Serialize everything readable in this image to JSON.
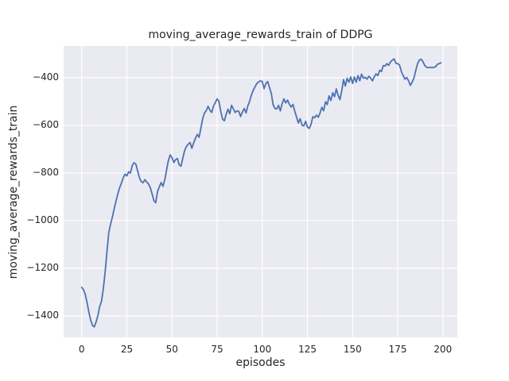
{
  "figure": {
    "title": "moving_average_rewards_train of DDPG",
    "xlabel": "episodes",
    "ylabel": "moving_average_rewards_train",
    "background_color": "#ffffff",
    "plot_background_color": "#eaeaf2",
    "grid_color": "#ffffff",
    "line_color": "#4c72b0",
    "text_color": "#262626"
  },
  "chart_data": {
    "type": "line",
    "title": "moving_average_rewards_train of DDPG",
    "xlabel": "episodes",
    "ylabel": "moving_average_rewards_train",
    "grid": true,
    "legend": null,
    "xlim": [
      -10,
      208
    ],
    "ylim": [
      -1490,
      -267
    ],
    "xticks": [
      0,
      25,
      50,
      75,
      100,
      125,
      150,
      175,
      200
    ],
    "xtick_labels": [
      "0",
      "25",
      "50",
      "75",
      "100",
      "125",
      "150",
      "175",
      "200"
    ],
    "yticks": [
      -400,
      -600,
      -800,
      -1000,
      -1200,
      -1400
    ],
    "ytick_labels": [
      "−400",
      "−600",
      "−800",
      "−1000",
      "−1200",
      "−1400"
    ],
    "series": [
      {
        "name": "moving_average_rewards_train",
        "x_start": 0,
        "x_step": 1,
        "y": [
          -1280,
          -1290,
          -1310,
          -1345,
          -1385,
          -1418,
          -1440,
          -1446,
          -1425,
          -1398,
          -1360,
          -1338,
          -1285,
          -1215,
          -1130,
          -1050,
          -1015,
          -985,
          -950,
          -918,
          -888,
          -862,
          -843,
          -820,
          -805,
          -812,
          -795,
          -800,
          -768,
          -757,
          -763,
          -792,
          -820,
          -836,
          -841,
          -828,
          -838,
          -846,
          -862,
          -888,
          -916,
          -925,
          -878,
          -858,
          -840,
          -856,
          -829,
          -788,
          -748,
          -724,
          -736,
          -756,
          -744,
          -739,
          -766,
          -771,
          -738,
          -706,
          -689,
          -679,
          -672,
          -696,
          -674,
          -654,
          -638,
          -650,
          -612,
          -572,
          -548,
          -538,
          -520,
          -536,
          -546,
          -519,
          -504,
          -489,
          -499,
          -541,
          -573,
          -581,
          -553,
          -532,
          -551,
          -516,
          -531,
          -546,
          -539,
          -541,
          -563,
          -544,
          -529,
          -548,
          -518,
          -499,
          -472,
          -453,
          -438,
          -424,
          -418,
          -413,
          -416,
          -446,
          -424,
          -416,
          -441,
          -466,
          -513,
          -529,
          -531,
          -516,
          -539,
          -509,
          -489,
          -506,
          -494,
          -511,
          -523,
          -512,
          -541,
          -565,
          -590,
          -572,
          -599,
          -602,
          -583,
          -607,
          -613,
          -596,
          -564,
          -568,
          -557,
          -566,
          -548,
          -524,
          -539,
          -501,
          -513,
          -476,
          -496,
          -463,
          -480,
          -447,
          -474,
          -492,
          -456,
          -408,
          -435,
          -402,
          -419,
          -397,
          -424,
          -397,
          -419,
          -391,
          -413,
          -385,
          -402,
          -398,
          -406,
          -394,
          -401,
          -413,
          -397,
          -384,
          -391,
          -369,
          -374,
          -349,
          -351,
          -341,
          -348,
          -334,
          -326,
          -321,
          -339,
          -341,
          -347,
          -373,
          -391,
          -406,
          -399,
          -413,
          -432,
          -419,
          -401,
          -369,
          -341,
          -326,
          -322,
          -333,
          -349,
          -356,
          -358,
          -356,
          -358,
          -356,
          -354,
          -343,
          -341,
          -337
        ]
      }
    ]
  }
}
